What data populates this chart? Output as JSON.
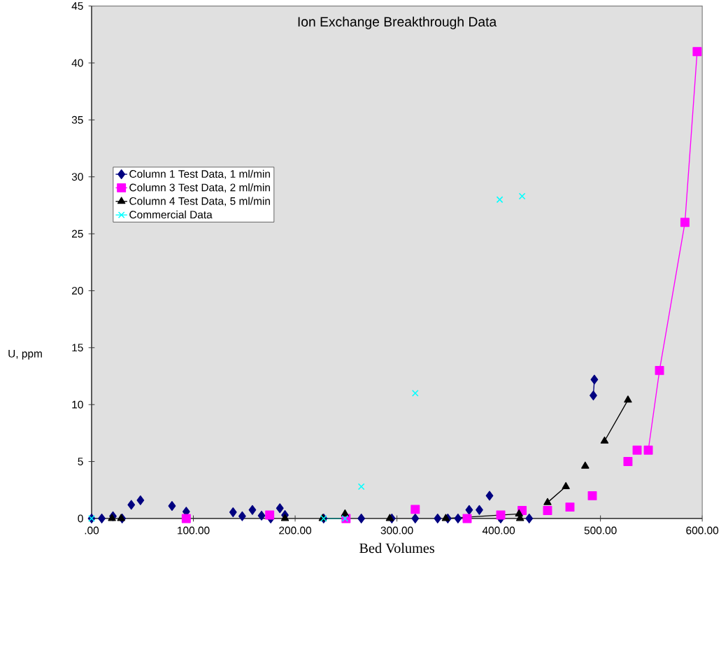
{
  "chart_data": {
    "type": "line",
    "title": "Ion Exchange Breakthrough Data",
    "xlabel": "Bed Volumes",
    "ylabel": "U, ppm",
    "xlim": [
      0,
      600
    ],
    "ylim": [
      0,
      45
    ],
    "xticks": [
      {
        "value": 0,
        "label": ".00"
      },
      {
        "value": 100,
        "label": "100.00"
      },
      {
        "value": 200,
        "label": "200.00"
      },
      {
        "value": 300,
        "label": "300.00"
      },
      {
        "value": 400,
        "label": "400.00"
      },
      {
        "value": 500,
        "label": "500.00"
      },
      {
        "value": 600,
        "label": "600.00"
      }
    ],
    "yticks": [
      0,
      5,
      10,
      15,
      20,
      25,
      30,
      35,
      40,
      45
    ],
    "legend": "left",
    "grid": false,
    "series": [
      {
        "name": "Column 1 Test Data, 1 ml/min",
        "color": "#000080",
        "marker": "diamond",
        "x": [
          0,
          null,
          10,
          null,
          21,
          null,
          30,
          null,
          39,
          null,
          48,
          null,
          79,
          null,
          93,
          null,
          139,
          null,
          148,
          null,
          158,
          null,
          167,
          null,
          176,
          null,
          185,
          null,
          190,
          null,
          228,
          null,
          265,
          null,
          295,
          null,
          318,
          null,
          340,
          null,
          350,
          null,
          360,
          null,
          371,
          null,
          381,
          null,
          391,
          null,
          402,
          null,
          430,
          null,
          493,
          494
        ],
        "values": [
          0,
          null,
          0,
          null,
          0.2,
          null,
          0,
          null,
          1.2,
          null,
          1.6,
          null,
          1.1,
          null,
          0.6,
          null,
          0.55,
          null,
          0.2,
          null,
          0.75,
          null,
          0.25,
          null,
          0,
          null,
          0.9,
          null,
          0.3,
          null,
          0,
          null,
          0,
          null,
          0,
          null,
          0,
          null,
          0,
          null,
          0,
          null,
          0,
          null,
          0.75,
          null,
          0.75,
          null,
          2.0,
          null,
          0,
          null,
          0,
          null,
          10.8,
          12.2
        ]
      },
      {
        "name": "Column 3 Test Data, 2 ml/min",
        "color": "#ff00ff",
        "marker": "square",
        "x": [
          93,
          null,
          175,
          null,
          250,
          null,
          318,
          null,
          369,
          null,
          402,
          null,
          423,
          null,
          448,
          null,
          470,
          null,
          492,
          null,
          527,
          null,
          536,
          null,
          547,
          558,
          583,
          595
        ],
        "values": [
          0,
          null,
          0.3,
          null,
          0,
          null,
          0.8,
          null,
          0,
          null,
          0.3,
          null,
          0.7,
          null,
          0.7,
          null,
          1,
          null,
          2,
          null,
          5,
          null,
          6,
          null,
          6,
          13,
          26,
          41
        ]
      },
      {
        "name": "Column 4 Test Data, 5 ml/min",
        "color": "#000000",
        "marker": "triangle",
        "x": [
          20,
          null,
          29,
          null,
          190,
          null,
          227,
          null,
          249,
          null,
          293,
          null,
          348,
          420,
          null,
          421,
          null,
          448,
          466,
          null,
          485,
          null,
          504,
          527
        ],
        "values": [
          0,
          null,
          0,
          null,
          0,
          null,
          0,
          null,
          0.4,
          null,
          0,
          null,
          0,
          0.4,
          null,
          0,
          null,
          1.4,
          2.8,
          null,
          4.6,
          null,
          6.8,
          10.4
        ]
      },
      {
        "name": "Commercial Data",
        "color": "#00ffff",
        "marker": "cross",
        "x": [
          0,
          null,
          228,
          249,
          null,
          265,
          null,
          318,
          null,
          401,
          null,
          423
        ],
        "values": [
          0,
          null,
          0,
          0,
          null,
          2.8,
          null,
          11,
          null,
          28,
          null,
          28.3
        ]
      }
    ]
  }
}
